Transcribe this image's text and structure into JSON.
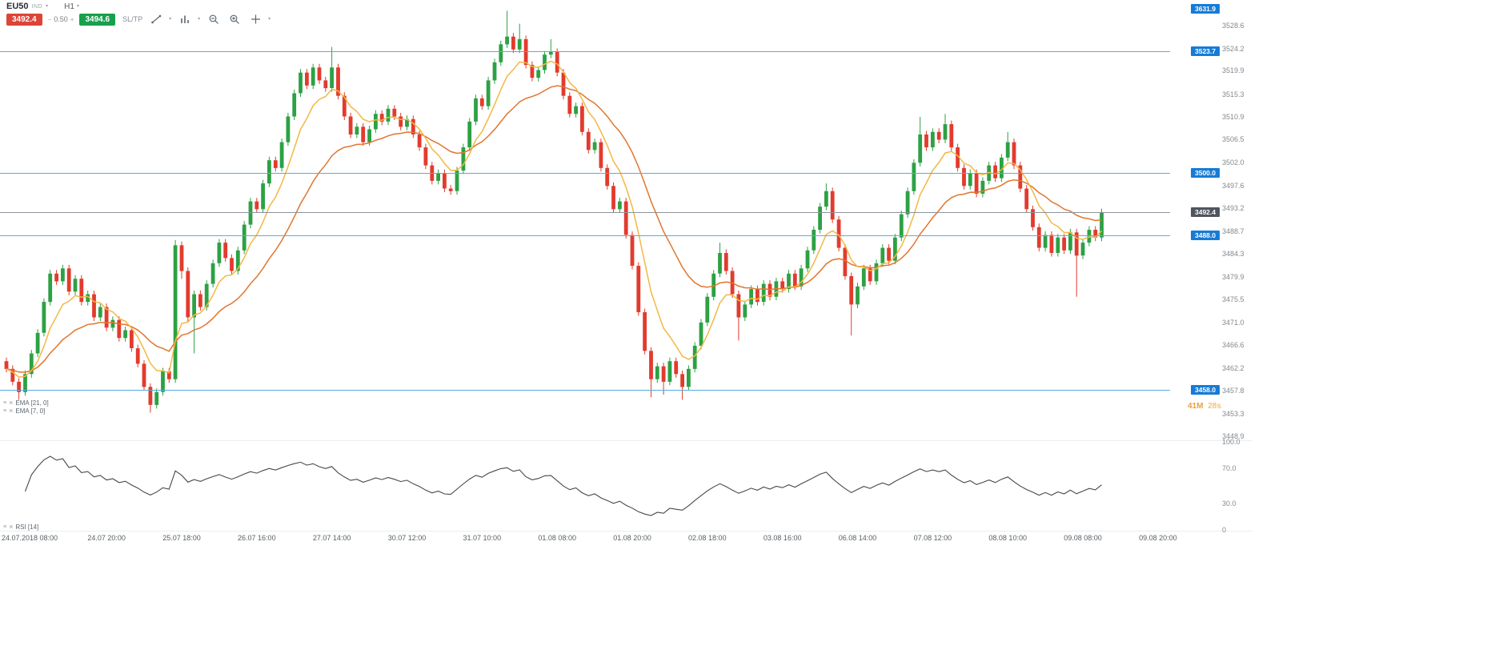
{
  "header": {
    "symbol": "EU50",
    "category_tag": "IND",
    "timeframe": "H1"
  },
  "glyphs": {
    "caret": "▾",
    "menu": "≡",
    "close": "×"
  },
  "trade_bar": {
    "sell_price": "3492.4",
    "volume_minus": "−",
    "volume": "0.50",
    "volume_plus": "+",
    "buy_price": "3494.6",
    "sltp_label": "SL/TP",
    "sell_color": "#dc4437",
    "buy_color": "#18a04d"
  },
  "price_axis": {
    "ticks": [
      3528.6,
      3524.2,
      3519.9,
      3515.3,
      3510.9,
      3506.5,
      3502.0,
      3497.6,
      3493.2,
      3488.7,
      3484.3,
      3479.9,
      3475.5,
      3471.0,
      3466.6,
      3462.2,
      3457.8,
      3453.3,
      3448.9
    ]
  },
  "lines": [
    {
      "price": 3631.9,
      "label": "3631.9"
    },
    {
      "price": 3523.7,
      "label": "3523.7"
    },
    {
      "price": 3500.0,
      "label": "3500.0"
    },
    {
      "price": 3488.0,
      "label": "3488.0"
    },
    {
      "price": 3458.0,
      "label": "3458.0"
    }
  ],
  "line_color": "#58abdf",
  "line_label_bg": "#177bd6",
  "current_price": {
    "value": 3492.4,
    "label": "3492.4",
    "label_bg": "#4f565e"
  },
  "countdown": {
    "minutes": "41M",
    "seconds": "28s"
  },
  "indicators": {
    "overlays": [
      {
        "label": "EMA [21, 0]",
        "period": 21,
        "color": "#e0762e"
      },
      {
        "label": "EMA [7, 0]",
        "period": 7,
        "color": "#f2b844"
      }
    ],
    "oscillator": {
      "label": "RSI [14]",
      "period": 14,
      "color": "#44484c",
      "ticks": [
        {
          "value": 100,
          "label": "100.0"
        },
        {
          "value": 70,
          "label": "70.0"
        },
        {
          "value": 30,
          "label": "30.0"
        },
        {
          "value": 0,
          "label": "0"
        }
      ]
    }
  },
  "time_axis": {
    "labels": [
      "24.07.2018 08:00",
      "24.07 20:00",
      "25.07 18:00",
      "26.07 16:00",
      "27.07 14:00",
      "30.07 12:00",
      "31.07 10:00",
      "01.08 08:00",
      "01.08 20:00",
      "02.08 18:00",
      "03.08 16:00",
      "06.08 14:00",
      "07.08 12:00",
      "08.08 10:00",
      "09.08 08:00",
      "09.08 20:00"
    ],
    "candle_indices": [
      4,
      16,
      28,
      40,
      52,
      64,
      76,
      88,
      100,
      112,
      124,
      136,
      148,
      160,
      172,
      184
    ]
  },
  "chart_data": {
    "type": "candlestick",
    "symbol": "EU50",
    "timeframe": "H1",
    "y_range": [
      3448.9,
      3533.6
    ],
    "colors": {
      "up": "#2da144",
      "down": "#e23b2e"
    },
    "ohlc": [
      [
        3463.5,
        3464.2,
        3461.3,
        3462.0
      ],
      [
        3462.0,
        3462.7,
        3458.8,
        3459.5
      ],
      [
        3459.5,
        3460.2,
        3456.0,
        3457.5
      ],
      [
        3457.5,
        3461.7,
        3456.8,
        3461.0
      ],
      [
        3461.0,
        3465.7,
        3460.3,
        3465.0
      ],
      [
        3465.0,
        3469.7,
        3464.3,
        3469.0
      ],
      [
        3469.0,
        3475.7,
        3468.3,
        3475.0
      ],
      [
        3475.0,
        3481.2,
        3474.3,
        3480.5
      ],
      [
        3480.5,
        3481.2,
        3478.3,
        3479.0
      ],
      [
        3479.0,
        3482.2,
        3478.3,
        3481.5
      ],
      [
        3481.5,
        3482.2,
        3476.3,
        3477.0
      ],
      [
        3477.0,
        3480.2,
        3476.3,
        3479.5
      ],
      [
        3479.5,
        3480.2,
        3474.3,
        3475.0
      ],
      [
        3475.0,
        3477.2,
        3474.3,
        3476.5
      ],
      [
        3476.5,
        3477.2,
        3471.3,
        3472.0
      ],
      [
        3472.0,
        3474.7,
        3471.3,
        3474.0
      ],
      [
        3474.0,
        3474.7,
        3469.3,
        3470.0
      ],
      [
        3470.0,
        3472.2,
        3469.3,
        3471.5
      ],
      [
        3471.5,
        3472.2,
        3467.3,
        3468.0
      ],
      [
        3468.0,
        3470.2,
        3467.3,
        3469.5
      ],
      [
        3469.5,
        3470.2,
        3465.3,
        3466.0
      ],
      [
        3466.0,
        3466.7,
        3462.3,
        3463.0
      ],
      [
        3463.0,
        3463.7,
        3457.8,
        3458.5
      ],
      [
        3458.5,
        3459.2,
        3453.5,
        3455.0
      ],
      [
        3455.0,
        3458.2,
        3454.3,
        3457.5
      ],
      [
        3457.5,
        3462.2,
        3456.8,
        3461.5
      ],
      [
        3461.5,
        3462.2,
        3459.3,
        3460.0
      ],
      [
        3460.0,
        3487.0,
        3459.3,
        3486.0
      ],
      [
        3486.0,
        3486.7,
        3479.5,
        3481.0
      ],
      [
        3481.0,
        3481.7,
        3471.0,
        3472.0
      ],
      [
        3472.0,
        3477.2,
        3465.0,
        3476.5
      ],
      [
        3476.5,
        3477.2,
        3473.3,
        3474.0
      ],
      [
        3474.0,
        3479.2,
        3473.3,
        3478.5
      ],
      [
        3478.5,
        3483.2,
        3477.8,
        3482.5
      ],
      [
        3482.5,
        3487.2,
        3481.8,
        3486.5
      ],
      [
        3486.5,
        3487.2,
        3482.8,
        3483.5
      ],
      [
        3483.5,
        3484.2,
        3480.3,
        3481.0
      ],
      [
        3481.0,
        3485.7,
        3480.3,
        3485.0
      ],
      [
        3485.0,
        3490.7,
        3484.3,
        3490.0
      ],
      [
        3490.0,
        3495.2,
        3489.3,
        3494.5
      ],
      [
        3494.5,
        3495.2,
        3492.3,
        3493.0
      ],
      [
        3493.0,
        3498.7,
        3492.3,
        3498.0
      ],
      [
        3498.0,
        3503.2,
        3497.3,
        3502.5
      ],
      [
        3502.5,
        3503.2,
        3500.3,
        3501.0
      ],
      [
        3501.0,
        3506.7,
        3500.3,
        3506.0
      ],
      [
        3506.0,
        3511.7,
        3505.3,
        3511.0
      ],
      [
        3511.0,
        3516.2,
        3510.3,
        3515.5
      ],
      [
        3515.5,
        3520.2,
        3514.8,
        3519.5
      ],
      [
        3519.5,
        3520.2,
        3516.3,
        3517.0
      ],
      [
        3517.0,
        3521.2,
        3516.3,
        3520.5
      ],
      [
        3520.5,
        3521.2,
        3517.3,
        3518.0
      ],
      [
        3518.0,
        3518.7,
        3515.8,
        3516.5
      ],
      [
        3516.5,
        3524.5,
        3515.8,
        3520.5
      ],
      [
        3520.5,
        3521.2,
        3514.3,
        3515.0
      ],
      [
        3515.0,
        3515.7,
        3510.3,
        3511.0
      ],
      [
        3511.0,
        3511.7,
        3506.8,
        3507.5
      ],
      [
        3507.5,
        3509.7,
        3506.8,
        3509.0
      ],
      [
        3509.0,
        3509.7,
        3505.3,
        3506.0
      ],
      [
        3506.0,
        3509.2,
        3505.3,
        3508.5
      ],
      [
        3508.5,
        3512.2,
        3507.8,
        3511.5
      ],
      [
        3511.5,
        3512.2,
        3509.3,
        3510.0
      ],
      [
        3510.0,
        3513.2,
        3509.3,
        3512.5
      ],
      [
        3512.5,
        3513.2,
        3510.3,
        3511.0
      ],
      [
        3511.0,
        3511.7,
        3508.3,
        3509.0
      ],
      [
        3509.0,
        3511.2,
        3508.3,
        3510.5
      ],
      [
        3510.5,
        3511.2,
        3506.8,
        3507.5
      ],
      [
        3507.5,
        3508.2,
        3504.3,
        3505.0
      ],
      [
        3505.0,
        3505.7,
        3500.8,
        3501.5
      ],
      [
        3501.5,
        3502.2,
        3497.8,
        3498.5
      ],
      [
        3498.5,
        3500.7,
        3497.8,
        3500.0
      ],
      [
        3500.0,
        3500.7,
        3496.3,
        3497.0
      ],
      [
        3497.0,
        3497.7,
        3495.8,
        3496.5
      ],
      [
        3496.5,
        3501.2,
        3495.8,
        3500.5
      ],
      [
        3500.5,
        3505.7,
        3499.8,
        3505.0
      ],
      [
        3505.0,
        3510.7,
        3504.3,
        3510.0
      ],
      [
        3510.0,
        3515.2,
        3509.3,
        3514.5
      ],
      [
        3514.5,
        3515.2,
        3512.3,
        3513.0
      ],
      [
        3513.0,
        3518.7,
        3512.3,
        3518.0
      ],
      [
        3518.0,
        3522.2,
        3517.3,
        3521.5
      ],
      [
        3521.5,
        3525.7,
        3520.8,
        3525.0
      ],
      [
        3525.0,
        3531.5,
        3524.3,
        3526.5
      ],
      [
        3526.5,
        3527.2,
        3523.3,
        3524.0
      ],
      [
        3524.0,
        3529.0,
        3523.3,
        3526.0
      ],
      [
        3526.0,
        3526.7,
        3520.3,
        3521.0
      ],
      [
        3521.0,
        3521.7,
        3517.8,
        3518.5
      ],
      [
        3518.5,
        3520.7,
        3517.8,
        3520.0
      ],
      [
        3520.0,
        3523.7,
        3519.3,
        3523.0
      ],
      [
        3523.0,
        3526.0,
        3522.3,
        3523.5
      ],
      [
        3523.5,
        3524.2,
        3518.8,
        3519.5
      ],
      [
        3519.5,
        3520.2,
        3514.3,
        3515.0
      ],
      [
        3515.0,
        3515.7,
        3510.8,
        3511.5
      ],
      [
        3511.5,
        3513.7,
        3510.8,
        3513.0
      ],
      [
        3513.0,
        3513.7,
        3507.3,
        3508.0
      ],
      [
        3508.0,
        3508.7,
        3503.8,
        3504.5
      ],
      [
        3504.5,
        3506.7,
        3503.8,
        3506.0
      ],
      [
        3506.0,
        3506.7,
        3500.3,
        3501.0
      ],
      [
        3501.0,
        3501.7,
        3496.8,
        3497.5
      ],
      [
        3497.5,
        3498.2,
        3492.3,
        3493.0
      ],
      [
        3493.0,
        3495.2,
        3492.3,
        3494.5
      ],
      [
        3494.5,
        3495.2,
        3487.3,
        3488.0
      ],
      [
        3488.0,
        3488.7,
        3481.3,
        3482.0
      ],
      [
        3482.0,
        3482.7,
        3472.3,
        3473.0
      ],
      [
        3473.0,
        3473.7,
        3464.8,
        3465.5
      ],
      [
        3465.5,
        3466.2,
        3456.5,
        3460.0
      ],
      [
        3460.0,
        3463.2,
        3459.3,
        3462.5
      ],
      [
        3462.5,
        3463.2,
        3457.0,
        3459.5
      ],
      [
        3459.5,
        3464.2,
        3458.8,
        3463.5
      ],
      [
        3463.5,
        3464.2,
        3460.3,
        3461.0
      ],
      [
        3461.0,
        3461.7,
        3456.0,
        3458.5
      ],
      [
        3458.5,
        3462.7,
        3457.8,
        3462.0
      ],
      [
        3462.0,
        3467.2,
        3461.3,
        3466.5
      ],
      [
        3466.5,
        3471.7,
        3465.8,
        3471.0
      ],
      [
        3471.0,
        3476.7,
        3470.3,
        3476.0
      ],
      [
        3476.0,
        3481.2,
        3475.3,
        3480.5
      ],
      [
        3480.5,
        3486.5,
        3479.8,
        3484.5
      ],
      [
        3484.5,
        3485.2,
        3480.3,
        3481.0
      ],
      [
        3481.0,
        3481.7,
        3475.8,
        3476.5
      ],
      [
        3476.5,
        3477.2,
        3467.5,
        3472.0
      ],
      [
        3472.0,
        3475.2,
        3471.3,
        3474.5
      ],
      [
        3474.5,
        3478.2,
        3473.8,
        3477.5
      ],
      [
        3477.5,
        3478.2,
        3474.3,
        3475.0
      ],
      [
        3475.0,
        3479.2,
        3474.3,
        3478.5
      ],
      [
        3478.5,
        3479.2,
        3475.3,
        3476.0
      ],
      [
        3476.0,
        3479.7,
        3475.3,
        3479.0
      ],
      [
        3479.0,
        3479.7,
        3476.8,
        3477.5
      ],
      [
        3477.5,
        3481.2,
        3476.8,
        3480.5
      ],
      [
        3480.5,
        3481.2,
        3477.3,
        3478.0
      ],
      [
        3478.0,
        3482.2,
        3477.3,
        3481.5
      ],
      [
        3481.5,
        3485.7,
        3480.8,
        3485.0
      ],
      [
        3485.0,
        3489.7,
        3484.3,
        3489.0
      ],
      [
        3489.0,
        3494.2,
        3488.3,
        3493.5
      ],
      [
        3493.5,
        3498.0,
        3492.8,
        3496.5
      ],
      [
        3496.5,
        3497.2,
        3490.3,
        3491.0
      ],
      [
        3491.0,
        3491.7,
        3484.8,
        3485.5
      ],
      [
        3485.5,
        3486.2,
        3479.3,
        3480.0
      ],
      [
        3480.0,
        3480.7,
        3468.5,
        3474.5
      ],
      [
        3474.5,
        3478.7,
        3473.8,
        3478.0
      ],
      [
        3478.0,
        3482.2,
        3477.3,
        3481.5
      ],
      [
        3481.5,
        3482.2,
        3478.3,
        3479.0
      ],
      [
        3479.0,
        3483.2,
        3478.3,
        3482.5
      ],
      [
        3482.5,
        3486.2,
        3481.8,
        3485.5
      ],
      [
        3485.5,
        3486.2,
        3482.3,
        3483.0
      ],
      [
        3483.0,
        3488.2,
        3482.3,
        3487.5
      ],
      [
        3487.5,
        3492.7,
        3486.8,
        3492.0
      ],
      [
        3492.0,
        3497.2,
        3491.3,
        3496.5
      ],
      [
        3496.5,
        3502.7,
        3495.8,
        3502.0
      ],
      [
        3502.0,
        3510.9,
        3501.3,
        3507.5
      ],
      [
        3507.5,
        3508.2,
        3504.3,
        3505.0
      ],
      [
        3505.0,
        3508.7,
        3504.3,
        3508.0
      ],
      [
        3508.0,
        3508.7,
        3505.8,
        3506.5
      ],
      [
        3506.5,
        3511.5,
        3505.8,
        3509.5
      ],
      [
        3509.5,
        3510.2,
        3504.3,
        3505.0
      ],
      [
        3505.0,
        3505.7,
        3500.3,
        3501.0
      ],
      [
        3501.0,
        3501.7,
        3496.8,
        3497.5
      ],
      [
        3497.5,
        3500.7,
        3496.8,
        3500.0
      ],
      [
        3500.0,
        3500.7,
        3495.3,
        3496.0
      ],
      [
        3496.0,
        3499.2,
        3495.3,
        3498.5
      ],
      [
        3498.5,
        3502.2,
        3497.8,
        3501.5
      ],
      [
        3501.5,
        3502.2,
        3498.3,
        3499.0
      ],
      [
        3499.0,
        3503.7,
        3498.3,
        3503.0
      ],
      [
        3503.0,
        3508.0,
        3502.3,
        3506.0
      ],
      [
        3506.0,
        3506.7,
        3500.8,
        3501.5
      ],
      [
        3501.5,
        3502.2,
        3496.3,
        3497.0
      ],
      [
        3497.0,
        3497.7,
        3492.3,
        3493.0
      ],
      [
        3493.0,
        3493.7,
        3488.8,
        3489.5
      ],
      [
        3489.5,
        3490.2,
        3484.8,
        3485.5
      ],
      [
        3485.5,
        3488.7,
        3484.8,
        3488.0
      ],
      [
        3488.0,
        3488.7,
        3483.8,
        3484.5
      ],
      [
        3484.5,
        3488.2,
        3483.8,
        3487.5
      ],
      [
        3487.5,
        3488.2,
        3484.3,
        3485.0
      ],
      [
        3485.0,
        3489.2,
        3484.3,
        3488.5
      ],
      [
        3488.5,
        3489.2,
        3476.0,
        3484.0
      ],
      [
        3484.0,
        3487.2,
        3483.3,
        3486.5
      ],
      [
        3486.5,
        3489.7,
        3485.8,
        3489.0
      ],
      [
        3489.0,
        3489.7,
        3486.8,
        3487.5
      ],
      [
        3487.5,
        3493.1,
        3486.8,
        3492.4
      ]
    ]
  }
}
